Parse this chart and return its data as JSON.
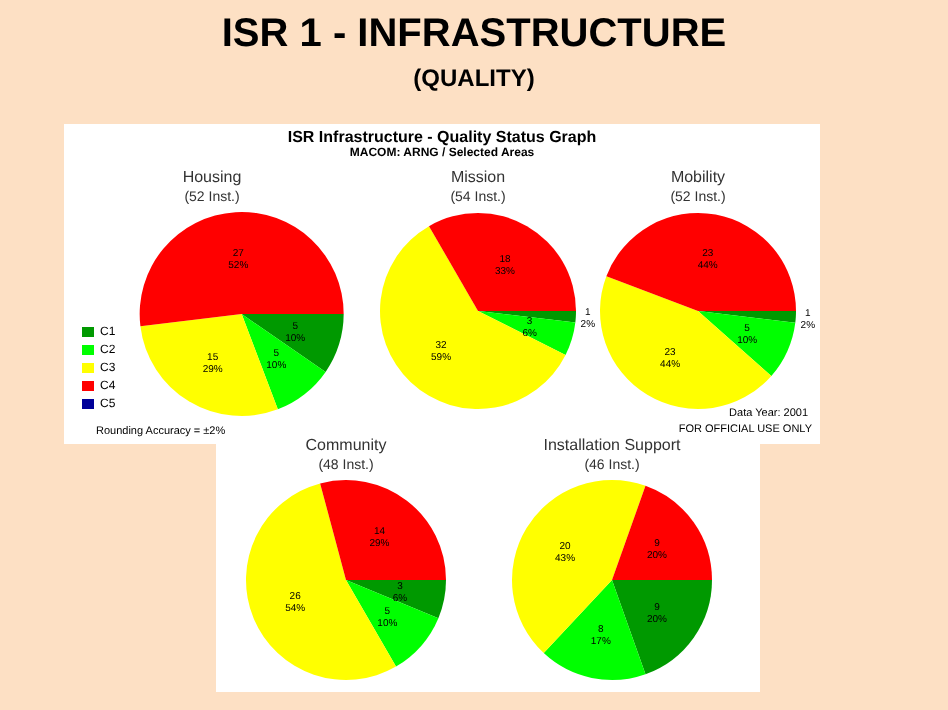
{
  "chart_data": [
    {
      "type": "other",
      "title": "ISR 1 - INFRASTRUCTURE",
      "subtitle": "(QUALITY)",
      "annotations": [
        "ISR Infrastructure - Quality Status Graph",
        "MACOM: ARNG / Selected Areas",
        "Rounding Accuracy = ±2%",
        "Data Year: 2001",
        "FOR OFFICIAL USE ONLY"
      ]
    },
    {
      "type": "pie",
      "title": "Housing",
      "subtitle": "(52 Inst.)",
      "categories": [
        "C1",
        "C2",
        "C3",
        "C4",
        "C5"
      ],
      "values": [
        5,
        5,
        15,
        27,
        0
      ],
      "colors": [
        "#009900",
        "#00ff00",
        "#ffff00",
        "#ff0000",
        "#000099"
      ],
      "value_labels": [
        "5 10%",
        "5 10%",
        "15 29%",
        "27 52%",
        null
      ],
      "legend": "left"
    },
    {
      "type": "pie",
      "title": "Mission",
      "subtitle": "(54 Inst.)",
      "categories": [
        null,
        null,
        null,
        null,
        null
      ],
      "values": [
        1,
        3,
        32,
        18,
        0
      ],
      "colors": [
        "#009900",
        "#00ff00",
        "#ffff00",
        "#ff0000",
        "#000099"
      ],
      "value_labels": [
        "1 2%",
        "3 6%",
        "32 59%",
        "18 33%",
        null
      ]
    },
    {
      "type": "pie",
      "title": "Mobility",
      "subtitle": "(52 Inst.)",
      "categories": [
        null,
        null,
        null,
        null,
        null
      ],
      "values": [
        1,
        5,
        23,
        23,
        0
      ],
      "colors": [
        "#009900",
        "#00ff00",
        "#ffff00",
        "#ff0000",
        "#000099"
      ],
      "value_labels": [
        "1 2%",
        "5 10%",
        "23 44%",
        "23 44%",
        null
      ]
    },
    {
      "type": "pie",
      "title": "Community",
      "subtitle": "(48 Inst.)",
      "categories": [
        null,
        null,
        null,
        null,
        null
      ],
      "values": [
        3,
        5,
        26,
        14,
        0
      ],
      "colors": [
        "#009900",
        "#00ff00",
        "#ffff00",
        "#ff0000",
        "#000099"
      ],
      "value_labels": [
        "3 6%",
        "5 10%",
        "26 54%",
        "14 29%",
        null
      ]
    },
    {
      "type": "pie",
      "title": "Installation Support",
      "subtitle": "(46 Inst.)",
      "categories": [
        null,
        null,
        null,
        null,
        null
      ],
      "values": [
        9,
        8,
        20,
        9,
        0
      ],
      "colors": [
        "#009900",
        "#00ff00",
        "#ffff00",
        "#ff0000",
        "#000099"
      ],
      "value_labels": [
        "9 20%",
        "8 17%",
        "20 43%",
        "9 20%",
        null
      ]
    }
  ]
}
